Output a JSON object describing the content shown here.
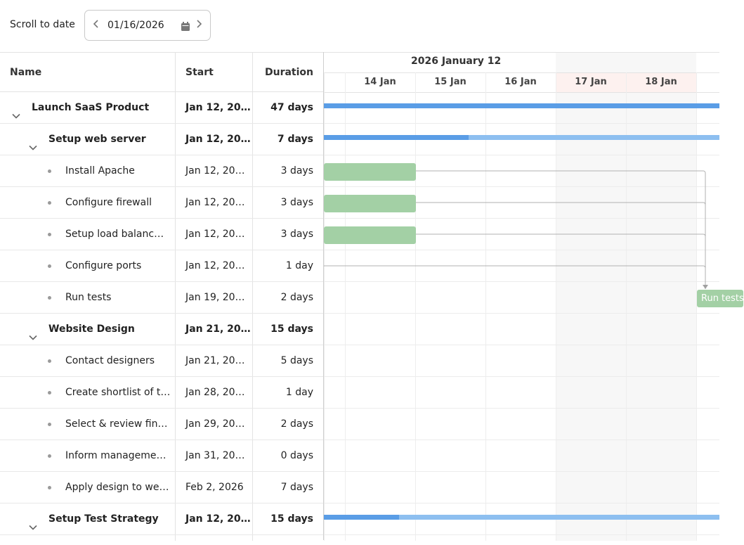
{
  "toolbar": {
    "scroll_label": "Scroll to date",
    "date_value": "01/16/2026",
    "prev_icon": "chevron-left-icon",
    "next_icon": "chevron-right-icon",
    "calendar_icon": "calendar-icon"
  },
  "grid": {
    "columns": {
      "name": "Name",
      "start": "Start",
      "duration": "Duration"
    },
    "rows": [
      {
        "name": "Launch SaaS Product",
        "start": "Jan 12, 20…",
        "duration": "47 days",
        "level": 0,
        "type": "parent"
      },
      {
        "name": "Setup web server",
        "start": "Jan 12, 20…",
        "duration": "7 days",
        "level": 1,
        "type": "parent"
      },
      {
        "name": "Install Apache",
        "start": "Jan 12, 20…",
        "duration": "3 days",
        "level": 2,
        "type": "task"
      },
      {
        "name": "Configure firewall",
        "start": "Jan 12, 20…",
        "duration": "3 days",
        "level": 2,
        "type": "task"
      },
      {
        "name": "Setup load balanc…",
        "start": "Jan 12, 20…",
        "duration": "3 days",
        "level": 2,
        "type": "task"
      },
      {
        "name": "Configure ports",
        "start": "Jan 12, 20…",
        "duration": "1 day",
        "level": 2,
        "type": "task"
      },
      {
        "name": "Run tests",
        "start": "Jan 19, 20…",
        "duration": "2 days",
        "level": 2,
        "type": "task"
      },
      {
        "name": "Website Design",
        "start": "Jan 21, 20…",
        "duration": "15 days",
        "level": 1,
        "type": "parent"
      },
      {
        "name": "Contact designers",
        "start": "Jan 21, 20…",
        "duration": "5 days",
        "level": 2,
        "type": "task"
      },
      {
        "name": "Create shortlist of t…",
        "start": "Jan 28, 20…",
        "duration": "1 day",
        "level": 2,
        "type": "task"
      },
      {
        "name": "Select & review fin…",
        "start": "Jan 29, 20…",
        "duration": "2 days",
        "level": 2,
        "type": "task"
      },
      {
        "name": "Inform manageme…",
        "start": "Jan 31, 20…",
        "duration": "0 days",
        "level": 2,
        "type": "task"
      },
      {
        "name": "Apply design to we…",
        "start": "Feb 2, 2026",
        "duration": "7 days",
        "level": 2,
        "type": "task"
      },
      {
        "name": "Setup Test Strategy",
        "start": "Jan 12, 20…",
        "duration": "15 days",
        "level": 1,
        "type": "parent"
      }
    ]
  },
  "timeline": {
    "week_title": "2026 January 12",
    "days": [
      "14 Jan",
      "15 Jan",
      "16 Jan",
      "17 Jan",
      "18 Jan"
    ],
    "weekend_days": [
      "17 Jan",
      "18 Jan"
    ],
    "run_tests_label": "Run tests",
    "colors": {
      "summary": "#8dbff0",
      "summary_progress": "#5a9de6",
      "task": "#a3d0a5",
      "weekend_header": "#fdf1ef"
    }
  }
}
